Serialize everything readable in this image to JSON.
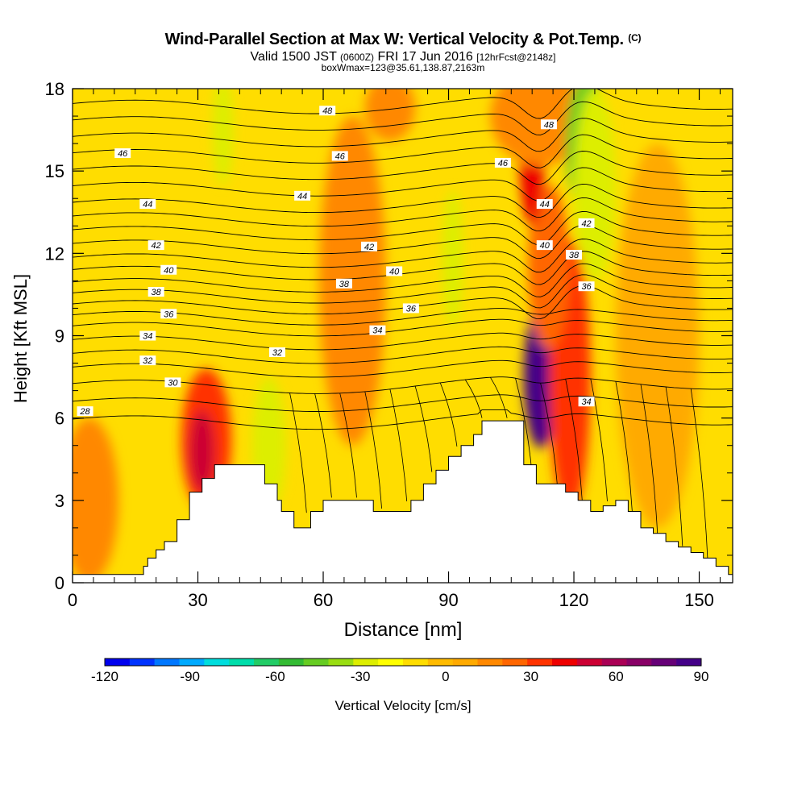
{
  "title": {
    "main": "Wind-Parallel Section at Max W: Vertical Velocity & Pot.Temp.",
    "copyright": "(C)",
    "line2_a": "Valid 1500 JST",
    "line2_b": "(0600Z)",
    "line2_c": "FRI 17 Jun 2016",
    "line2_d": "[12hrFcst@2148z]",
    "line3": "boxWmax=123@35.61,138.87,2163m"
  },
  "chart_data": {
    "type": "heatmap",
    "xlabel": "Distance [nm]",
    "ylabel": "Height [Kft MSL]",
    "xlim": [
      0,
      158
    ],
    "ylim": [
      0,
      18
    ],
    "x_ticks": [
      0,
      30,
      60,
      90,
      120,
      150
    ],
    "y_ticks": [
      0,
      3,
      6,
      9,
      12,
      15,
      18
    ],
    "x_tick_labels": [
      "0",
      "30",
      "60",
      "90",
      "120",
      "150"
    ],
    "y_tick_labels": [
      "0",
      "3",
      "6",
      "9",
      "12",
      "15",
      "18"
    ],
    "colorbar": {
      "label": "Vertical Velocity [cm/s]",
      "min": -120,
      "max": 90,
      "tick_values": [
        -120,
        -90,
        -60,
        -30,
        0,
        30,
        60,
        90
      ],
      "tick_labels": [
        "-120",
        "-90",
        "-60",
        "-30",
        "0",
        "30",
        "60",
        "90"
      ],
      "colors": [
        "#0000ee",
        "#0033ff",
        "#0077ff",
        "#00aaff",
        "#00dddd",
        "#00ddaa",
        "#22cc66",
        "#33bb33",
        "#66cc22",
        "#99dd11",
        "#ddee00",
        "#ffff00",
        "#ffdd00",
        "#ffbb00",
        "#ffaa00",
        "#ff8800",
        "#ff6600",
        "#ff3300",
        "#ee0000",
        "#cc0033",
        "#aa0055",
        "#880066",
        "#660077",
        "#440088"
      ]
    },
    "background_color": "#ffdd00",
    "velocity_features": [
      {
        "x": 112,
        "y": 7.5,
        "rx": 4,
        "ry": 2.6,
        "w": 90
      },
      {
        "x": 120,
        "y": 7.8,
        "rx": 2.2,
        "ry": 2.4,
        "w": 80
      },
      {
        "x": 120,
        "y": 7.5,
        "rx": 3.8,
        "ry": 3.6,
        "w": 55
      },
      {
        "x": 119,
        "y": 7.5,
        "rx": 5,
        "ry": 5,
        "w": 30
      },
      {
        "x": 114,
        "y": 11.5,
        "rx": 5,
        "ry": 3,
        "w": 25
      },
      {
        "x": 110,
        "y": 15.5,
        "rx": 3,
        "ry": 2.5,
        "w": 40
      },
      {
        "x": 32,
        "y": 5.2,
        "rx": 6,
        "ry": 2.6,
        "w": 35
      },
      {
        "x": 31,
        "y": 4.8,
        "rx": 3,
        "ry": 1.5,
        "w": 50
      },
      {
        "x": 4,
        "y": 3,
        "rx": 7,
        "ry": 3,
        "w": 15
      },
      {
        "x": 112,
        "y": 17,
        "rx": 12,
        "ry": 1.8,
        "w": 15
      },
      {
        "x": 76,
        "y": 17.3,
        "rx": 6,
        "ry": 1.2,
        "w": 15
      },
      {
        "x": 47,
        "y": 5,
        "rx": 4,
        "ry": 2.5,
        "w": -25
      },
      {
        "x": 91,
        "y": 11.8,
        "rx": 2.5,
        "ry": 2.5,
        "w": -25
      },
      {
        "x": 36,
        "y": 16.5,
        "rx": 2.5,
        "ry": 2,
        "w": -25
      },
      {
        "x": 123,
        "y": 16,
        "rx": 5,
        "ry": 2.5,
        "w": -50
      },
      {
        "x": 125,
        "y": 14.5,
        "rx": 5,
        "ry": 3.5,
        "w": -30
      },
      {
        "x": 67,
        "y": 11,
        "rx": 8,
        "ry": 6,
        "w": 12
      },
      {
        "x": 140,
        "y": 9,
        "rx": 10,
        "ry": 7,
        "w": 10
      }
    ],
    "terrain": [
      [
        0,
        0.3
      ],
      [
        16,
        0.3
      ],
      [
        17,
        0.6
      ],
      [
        18,
        0.9
      ],
      [
        20,
        1.2
      ],
      [
        22,
        1.5
      ],
      [
        25,
        2.3
      ],
      [
        28,
        3.3
      ],
      [
        31,
        3.8
      ],
      [
        34,
        4.3
      ],
      [
        43,
        4.3
      ],
      [
        46,
        3.6
      ],
      [
        49,
        3.0
      ],
      [
        50,
        2.6
      ],
      [
        53,
        2.0
      ],
      [
        57,
        2.6
      ],
      [
        60,
        3.0
      ],
      [
        69,
        3.0
      ],
      [
        72,
        2.6
      ],
      [
        78,
        2.6
      ],
      [
        81,
        3.0
      ],
      [
        84,
        3.6
      ],
      [
        87,
        4.1
      ],
      [
        90,
        4.6
      ],
      [
        93,
        5.0
      ],
      [
        96,
        5.4
      ],
      [
        98,
        5.9
      ],
      [
        104,
        5.9
      ],
      [
        108,
        4.3
      ],
      [
        111,
        3.6
      ],
      [
        115,
        3.6
      ],
      [
        118,
        3.3
      ],
      [
        121,
        3.0
      ],
      [
        124,
        2.6
      ],
      [
        127,
        2.8
      ],
      [
        130,
        3.0
      ],
      [
        133,
        2.6
      ],
      [
        136,
        2.0
      ],
      [
        139,
        1.8
      ],
      [
        142,
        1.5
      ],
      [
        145,
        1.3
      ],
      [
        148,
        1.1
      ],
      [
        151,
        0.9
      ],
      [
        154,
        0.6
      ],
      [
        157,
        0.3
      ],
      [
        158,
        0.3
      ]
    ],
    "isentropes": [
      {
        "theta": 28,
        "base": 6.0
      },
      {
        "theta": 29,
        "base": 6.65
      },
      {
        "theta": 30,
        "base": 7.3
      },
      {
        "theta": 31,
        "base": 7.9
      },
      {
        "theta": 32,
        "base": 8.4
      },
      {
        "theta": 33,
        "base": 8.9
      },
      {
        "theta": 34,
        "base": 9.4
      },
      {
        "theta": 35,
        "base": 9.8
      },
      {
        "theta": 36,
        "base": 10.2
      },
      {
        "theta": 37,
        "base": 10.6
      },
      {
        "theta": 38,
        "base": 11.0
      },
      {
        "theta": 39,
        "base": 11.45
      },
      {
        "theta": 40,
        "base": 11.9
      },
      {
        "theta": 41,
        "base": 12.4
      },
      {
        "theta": 42,
        "base": 12.9
      },
      {
        "theta": 43,
        "base": 13.4
      },
      {
        "theta": 44,
        "base": 13.9
      },
      {
        "theta": 45,
        "base": 14.5
      },
      {
        "theta": 46,
        "base": 15.1
      },
      {
        "theta": 47,
        "base": 15.7
      },
      {
        "theta": 48,
        "base": 16.3
      },
      {
        "theta": 49,
        "base": 16.9
      },
      {
        "theta": 50,
        "base": 17.5
      }
    ],
    "contour_labels": [
      {
        "text": "46",
        "x": 12,
        "y": 15.65
      },
      {
        "text": "44",
        "x": 18,
        "y": 13.8
      },
      {
        "text": "42",
        "x": 20,
        "y": 12.3
      },
      {
        "text": "40",
        "x": 23,
        "y": 11.4
      },
      {
        "text": "38",
        "x": 20,
        "y": 10.6
      },
      {
        "text": "36",
        "x": 23,
        "y": 9.8
      },
      {
        "text": "34",
        "x": 18,
        "y": 9.0
      },
      {
        "text": "32",
        "x": 18,
        "y": 8.1
      },
      {
        "text": "30",
        "x": 24,
        "y": 7.3
      },
      {
        "text": "28",
        "x": 3,
        "y": 6.25
      },
      {
        "text": "48",
        "x": 61,
        "y": 17.2
      },
      {
        "text": "46",
        "x": 64,
        "y": 15.55
      },
      {
        "text": "44",
        "x": 55,
        "y": 14.1
      },
      {
        "text": "42",
        "x": 71,
        "y": 12.25
      },
      {
        "text": "40",
        "x": 77,
        "y": 11.35
      },
      {
        "text": "38",
        "x": 65,
        "y": 10.9
      },
      {
        "text": "36",
        "x": 81,
        "y": 10.0
      },
      {
        "text": "34",
        "x": 73,
        "y": 9.2
      },
      {
        "text": "32",
        "x": 49,
        "y": 8.4
      },
      {
        "text": "48",
        "x": 114,
        "y": 16.7
      },
      {
        "text": "46",
        "x": 103,
        "y": 15.3
      },
      {
        "text": "44",
        "x": 113,
        "y": 13.8
      },
      {
        "text": "42",
        "x": 123,
        "y": 13.1
      },
      {
        "text": "40",
        "x": 113,
        "y": 12.3
      },
      {
        "text": "38",
        "x": 120,
        "y": 11.95
      },
      {
        "text": "36",
        "x": 123,
        "y": 10.8
      },
      {
        "text": "34",
        "x": 123,
        "y": 6.6
      }
    ]
  }
}
